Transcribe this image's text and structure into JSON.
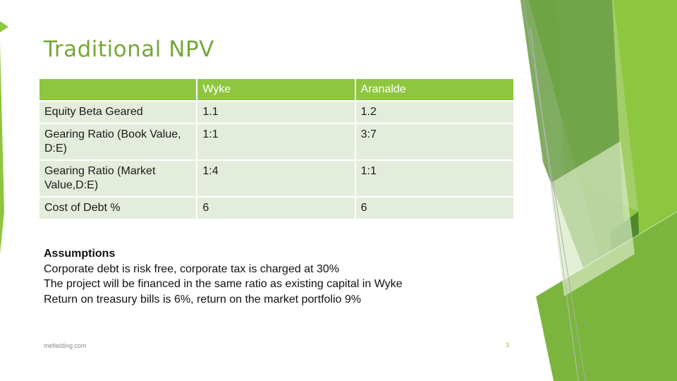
{
  "slide": {
    "title": "Traditional NPV",
    "footer_left": "mefielding.com",
    "page_number": "3"
  },
  "table": {
    "headers": [
      "",
      "Wyke",
      "Aranalde"
    ],
    "rows": [
      [
        "Equity Beta Geared",
        "1.1",
        "1.2"
      ],
      [
        "Gearing Ratio (Book Value, D:E)",
        "1:1",
        "3:7"
      ],
      [
        "Gearing Ratio (Market Value,D:E)",
        "1:4",
        "1:1"
      ],
      [
        "Cost of Debt %",
        "6",
        "6"
      ]
    ]
  },
  "assumptions": {
    "heading": "Assumptions",
    "lines": [
      "Corporate debt is risk free, corporate tax is charged at 30%",
      "The project will be financed in the same ratio as existing capital in Wyke",
      "Return on treasury bills is 6%, return on the market portfolio 9%"
    ]
  },
  "colors": {
    "accent_green": "#8ec63f",
    "title_green": "#76a739",
    "row_fill": "#e4eddc",
    "dark_green": "#4e8a2a"
  }
}
